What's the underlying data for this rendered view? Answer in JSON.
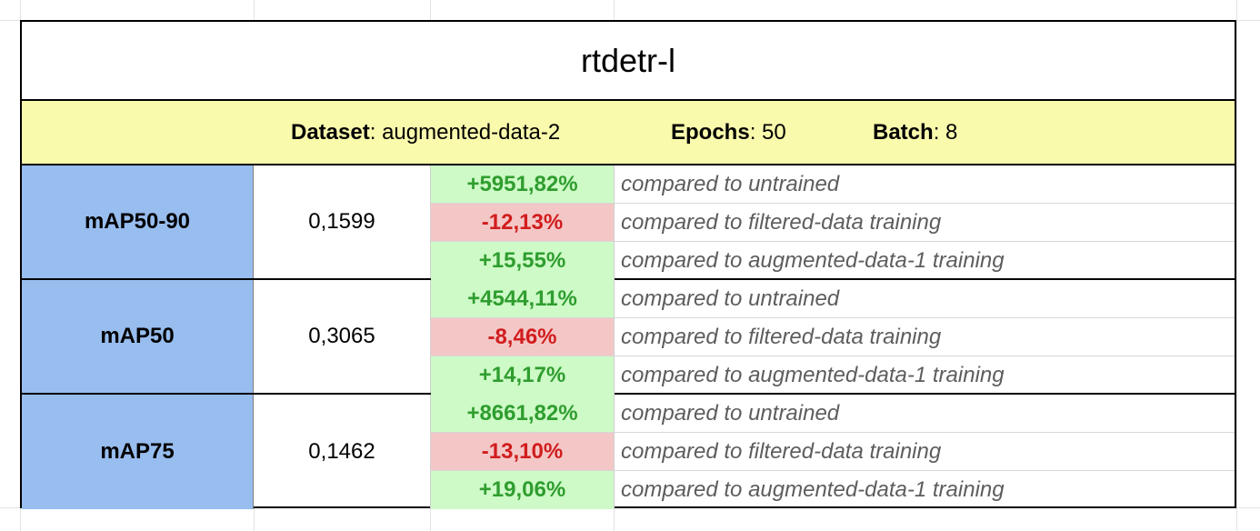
{
  "title": "rtdetr-l",
  "info": {
    "dataset_label": "Dataset",
    "dataset_value": "augmented-data-2",
    "epochs_label": "Epochs",
    "epochs_value": "50",
    "batch_label": "Batch",
    "batch_value": "8"
  },
  "colors": {
    "header_bg": "#fafaad",
    "metric_bg": "#98bdef",
    "positive_bg": "#cdfac6",
    "positive_text": "#2f9d2f",
    "negative_bg": "#f4c7c7",
    "negative_text": "#d11d1d"
  },
  "metrics": [
    {
      "name": "mAP50-90",
      "value": "0,1599",
      "comparisons": [
        {
          "pct": "+5951,82%",
          "sign": "positive",
          "desc": "compared to untrained"
        },
        {
          "pct": "-12,13%",
          "sign": "negative",
          "desc": "compared to filtered-data training"
        },
        {
          "pct": "+15,55%",
          "sign": "positive",
          "desc": "compared to augmented-data-1 training"
        }
      ]
    },
    {
      "name": "mAP50",
      "value": "0,3065",
      "comparisons": [
        {
          "pct": "+4544,11%",
          "sign": "positive",
          "desc": "compared to untrained"
        },
        {
          "pct": "-8,46%",
          "sign": "negative",
          "desc": "compared to filtered-data training"
        },
        {
          "pct": "+14,17%",
          "sign": "positive",
          "desc": "compared to augmented-data-1 training"
        }
      ]
    },
    {
      "name": "mAP75",
      "value": "0,1462",
      "comparisons": [
        {
          "pct": "+8661,82%",
          "sign": "positive",
          "desc": "compared to untrained"
        },
        {
          "pct": "-13,10%",
          "sign": "negative",
          "desc": "compared to filtered-data training"
        },
        {
          "pct": "+19,06%",
          "sign": "positive",
          "desc": "compared to augmented-data-1 training"
        }
      ]
    }
  ]
}
